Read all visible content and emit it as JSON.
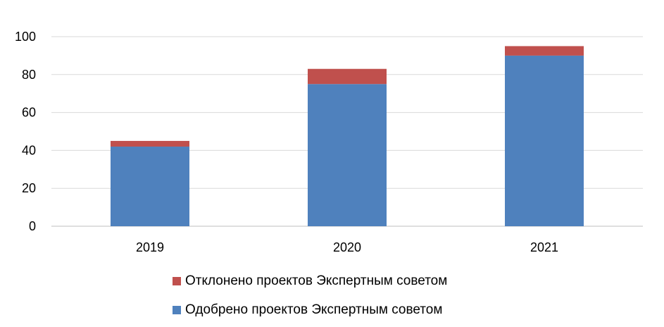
{
  "chart_data": {
    "type": "bar",
    "stacked": true,
    "categories": [
      "2019",
      "2020",
      "2021"
    ],
    "series": [
      {
        "name": "Одобрено проектов Экспертным советом",
        "values": [
          42,
          75,
          90
        ],
        "color": "#4f81bd"
      },
      {
        "name": "Отклонено проектов Экспертным советом",
        "values": [
          3,
          8,
          5
        ],
        "color": "#c0504d"
      }
    ],
    "ylim": [
      0,
      100
    ],
    "yticks": [
      "0",
      "20",
      "40",
      "60",
      "80",
      "100"
    ],
    "grid": true,
    "legend_position": "bottom"
  }
}
